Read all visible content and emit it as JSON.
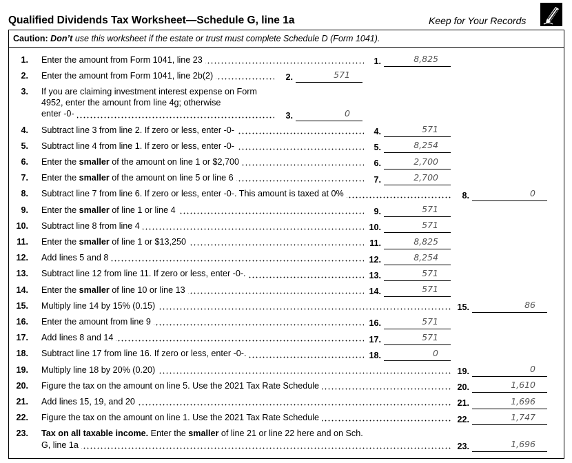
{
  "header": {
    "title": "Qualified Dividends Tax Worksheet—Schedule G, line 1a",
    "records": "Keep for Your Records"
  },
  "caution": {
    "label": "Caution:",
    "emphasis": "Don’t",
    "text": "use this worksheet if the estate or trust must complete Schedule D (Form 1041)."
  },
  "lines": [
    {
      "num": "1.",
      "text": [
        [
          "Enter the amount from Form 1041, line 23"
        ]
      ],
      "entry": {
        "box": "middle",
        "ref": "1.",
        "value": "8,825"
      }
    },
    {
      "num": "2.",
      "text": [
        [
          "Enter the amount from Form 1041, line 2b(2)"
        ]
      ],
      "entry": {
        "box": "left",
        "ref": "2.",
        "value": "571"
      }
    },
    {
      "num": "3.",
      "text": [
        [
          "If you are claiming investment interest expense on Form"
        ],
        [
          "4952, enter the amount from line 4g; otherwise"
        ],
        [
          "enter -0-"
        ]
      ],
      "entry": {
        "box": "left",
        "ref": "3.",
        "value": "0"
      }
    },
    {
      "num": "4.",
      "text": [
        [
          "Subtract line 3 from line 2. If zero or less, enter -0-"
        ]
      ],
      "entry": {
        "box": "middle",
        "ref": "4.",
        "value": "571"
      }
    },
    {
      "num": "5.",
      "text": [
        [
          "Subtract line 4 from line 1. If zero or less, enter -0-"
        ]
      ],
      "entry": {
        "box": "middle",
        "ref": "5.",
        "value": "8,254"
      }
    },
    {
      "num": "6.",
      "text": [
        [
          "Enter the ",
          {
            "bold": "smaller"
          },
          " of the amount on line 1 or $2,700"
        ]
      ],
      "entry": {
        "box": "middle",
        "ref": "6.",
        "value": "2,700"
      }
    },
    {
      "num": "7.",
      "text": [
        [
          "Enter the ",
          {
            "bold": "smaller"
          },
          " of the amount on line 5 or line 6"
        ]
      ],
      "entry": {
        "box": "middle",
        "ref": "7.",
        "value": "2,700"
      }
    },
    {
      "num": "8.",
      "text": [
        [
          "Subtract line 7 from line 6. If zero or less, enter -0-. This amount is taxed at 0%"
        ]
      ],
      "entry": {
        "box": "right",
        "ref": "8.",
        "value": "0"
      }
    },
    {
      "num": "9.",
      "text": [
        [
          "Enter the ",
          {
            "bold": "smaller"
          },
          " of line 1 or line 4"
        ]
      ],
      "entry": {
        "box": "middle",
        "ref": "9.",
        "value": "571"
      }
    },
    {
      "num": "10.",
      "text": [
        [
          "Subtract line 8 from line 4"
        ]
      ],
      "entry": {
        "box": "middle",
        "ref": "10.",
        "value": "571"
      }
    },
    {
      "num": "11.",
      "text": [
        [
          "Enter the ",
          {
            "bold": "smaller"
          },
          " of line 1 or $13,250"
        ]
      ],
      "entry": {
        "box": "middle",
        "ref": "11.",
        "value": "8,825"
      }
    },
    {
      "num": "12.",
      "text": [
        [
          "Add lines 5 and 8"
        ]
      ],
      "entry": {
        "box": "middle",
        "ref": "12.",
        "value": "8,254"
      }
    },
    {
      "num": "13.",
      "text": [
        [
          "Subtract line 12 from line 11. If zero or less, enter -0-."
        ]
      ],
      "entry": {
        "box": "middle",
        "ref": "13.",
        "value": "571"
      }
    },
    {
      "num": "14.",
      "text": [
        [
          "Enter the ",
          {
            "bold": "smaller"
          },
          " of line 10 or line 13"
        ]
      ],
      "entry": {
        "box": "middle",
        "ref": "14.",
        "value": "571"
      }
    },
    {
      "num": "15.",
      "text": [
        [
          "Multiply line 14 by 15% (0.15)"
        ]
      ],
      "entry": {
        "box": "right",
        "ref": "15.",
        "value": "86"
      }
    },
    {
      "num": "16.",
      "text": [
        [
          "Enter the amount from line 9"
        ]
      ],
      "entry": {
        "box": "middle",
        "ref": "16.",
        "value": "571"
      }
    },
    {
      "num": "17.",
      "text": [
        [
          "Add lines 8 and 14"
        ]
      ],
      "entry": {
        "box": "middle",
        "ref": "17.",
        "value": "571"
      }
    },
    {
      "num": "18.",
      "text": [
        [
          "Subtract line 17 from line 16. If zero or less, enter -0-."
        ]
      ],
      "entry": {
        "box": "middle",
        "ref": "18.",
        "value": "0"
      }
    },
    {
      "num": "19.",
      "text": [
        [
          "Multiply line 18 by 20% (0.20)"
        ]
      ],
      "entry": {
        "box": "right",
        "ref": "19.",
        "value": "0"
      }
    },
    {
      "num": "20.",
      "text": [
        [
          "Figure the tax on the amount on line 5. Use the 2021 Tax Rate Schedule"
        ]
      ],
      "entry": {
        "box": "right",
        "ref": "20.",
        "value": "1,610"
      }
    },
    {
      "num": "21.",
      "text": [
        [
          "Add lines 15, 19, and 20"
        ]
      ],
      "entry": {
        "box": "right",
        "ref": "21.",
        "value": "1,696"
      }
    },
    {
      "num": "22.",
      "text": [
        [
          "Figure the tax on the amount on line 1. Use the 2021 Tax Rate Schedule"
        ]
      ],
      "entry": {
        "box": "right",
        "ref": "22.",
        "value": "1,747"
      }
    },
    {
      "num": "23.",
      "text": [
        [
          {
            "bold": "Tax on all taxable income."
          },
          " Enter the ",
          {
            "bold": "smaller"
          },
          " of line 21 or line 22 here and on Sch."
        ],
        [
          "G, line 1a"
        ]
      ],
      "entry": {
        "box": "right",
        "ref": "23.",
        "value": "1,696"
      }
    }
  ]
}
